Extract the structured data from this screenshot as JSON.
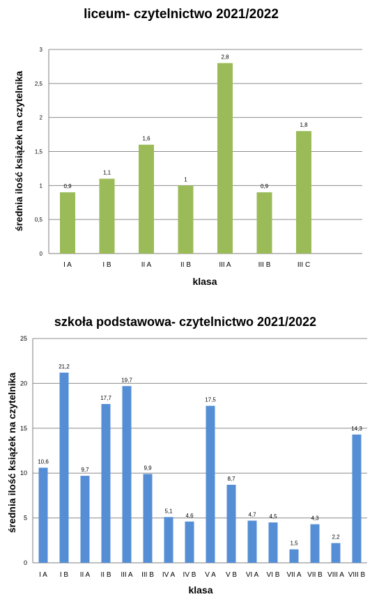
{
  "chart_data": [
    {
      "type": "bar",
      "title": "liceum- czytelnictwo 2021/2022",
      "xlabel": "klasa",
      "ylabel": "średnia  ilość  książek  na czytelnika",
      "categories": [
        "I A",
        "I B",
        "II A",
        "II B",
        "III A",
        "III B",
        "III C"
      ],
      "values": [
        0.9,
        1.1,
        1.6,
        1,
        2.8,
        0.9,
        1.8
      ],
      "value_labels": [
        "0,9",
        "1,1",
        "1,6",
        "1",
        "2,8",
        "0,9",
        "1,8"
      ],
      "ylim": [
        0,
        3
      ],
      "yticks": [
        0,
        0.5,
        1,
        1.5,
        2,
        2.5,
        3
      ],
      "ytick_labels": [
        "0",
        "0,5",
        "1",
        "1,5",
        "2",
        "2,5",
        "3"
      ],
      "grid": true,
      "legend": "none",
      "color": "#9bbb59"
    },
    {
      "type": "bar",
      "title": "szkoła podstawowa- czytelnictwo 2021/2022",
      "xlabel": "klasa",
      "ylabel": "średnia  ilość  książek  na  czytelnika",
      "categories": [
        "I A",
        "I B",
        "II A",
        "II B",
        "III A",
        "III B",
        "IV A",
        "IV B",
        "V A",
        "V B",
        "VI A",
        "VI B",
        "VII A",
        "VII B",
        "VIII A",
        "VIII B"
      ],
      "values": [
        10.6,
        21.2,
        9.7,
        17.7,
        19.7,
        9.9,
        5.1,
        4.6,
        17.5,
        8.7,
        4.7,
        4.5,
        1.5,
        4.3,
        2.2,
        14.3
      ],
      "value_labels": [
        "10,6",
        "21,2",
        "9,7",
        "17,7",
        "19,7",
        "9,9",
        "5,1",
        "4,6",
        "17,5",
        "8,7",
        "4,7",
        "4,5",
        "1,5",
        "4,3",
        "2,2",
        "14,3"
      ],
      "ylim": [
        0,
        25
      ],
      "yticks": [
        0,
        5,
        10,
        15,
        20,
        25
      ],
      "ytick_labels": [
        "0",
        "5",
        "10",
        "15",
        "20",
        "25"
      ],
      "grid": true,
      "legend": "none",
      "color": "#558ed5"
    }
  ]
}
